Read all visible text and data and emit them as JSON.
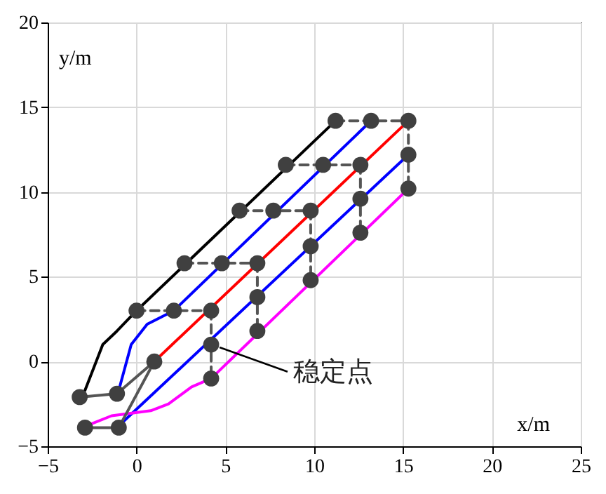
{
  "chart_data": {
    "type": "line",
    "xlabel": "x/m",
    "ylabel": "y/m",
    "xlim": [
      -5,
      25
    ],
    "ylim": [
      -5,
      20
    ],
    "xticks": [
      -5,
      0,
      5,
      10,
      15,
      20,
      25
    ],
    "yticks": [
      -5,
      0,
      5,
      10,
      15,
      20
    ],
    "grid": true,
    "annotations": [
      {
        "text": "稳定点",
        "x": 4.2,
        "y": 1.0
      }
    ],
    "series": [
      {
        "color": "#000000",
        "line_style": "solid",
        "marker": "none",
        "x": [
          -2.9,
          -1.9,
          -1.1,
          0,
          11.2
        ],
        "values": [
          -1.7,
          1.0,
          1.8,
          3.0,
          14.2
        ]
      },
      {
        "color": "#0000ff",
        "line_style": "solid",
        "marker": "none",
        "x": [
          -1.0,
          -0.3,
          0.6,
          2.1,
          13.2
        ],
        "values": [
          -1.7,
          1.0,
          2.2,
          3.0,
          14.2
        ]
      },
      {
        "color": "#ff0000",
        "line_style": "solid",
        "marker": "none",
        "x": [
          1.0,
          15.3
        ],
        "values": [
          0,
          14.2
        ]
      },
      {
        "color": "#0000ff",
        "line_style": "solid",
        "marker": "none",
        "x": [
          -0.7,
          15.3
        ],
        "values": [
          -3.5,
          12.2
        ]
      },
      {
        "color": "#ff00ff",
        "line_style": "solid",
        "marker": "none",
        "x": [
          -2.6,
          -1.4,
          0.8,
          1.8,
          3.1,
          4.2,
          15.3
        ],
        "values": [
          -3.7,
          -3.2,
          -2.9,
          -2.5,
          -1.5,
          -1.0,
          10.2
        ]
      },
      {
        "color": "#555555",
        "line_style": "solid",
        "marker": "none",
        "x": [
          -3.2,
          -1.1,
          1.0
        ],
        "values": [
          -2.1,
          -1.9,
          0
        ]
      },
      {
        "color": "#555555",
        "line_style": "solid",
        "marker": "none",
        "x": [
          -2.9,
          -1.0,
          1.0
        ],
        "values": [
          -3.9,
          -3.9,
          0
        ]
      },
      {
        "color": "#555555",
        "line_style": "dashed",
        "marker": "none",
        "x": [
          11.2,
          13.2,
          15.3
        ],
        "values": [
          14.2,
          14.2,
          14.2
        ]
      },
      {
        "color": "#555555",
        "line_style": "dashed",
        "marker": "none",
        "x": [
          8.4,
          10.5,
          12.6
        ],
        "values": [
          11.6,
          11.6,
          11.6
        ]
      },
      {
        "color": "#555555",
        "line_style": "dashed",
        "marker": "none",
        "x": [
          5.8,
          7.7,
          9.8
        ],
        "values": [
          8.9,
          8.9,
          8.9
        ]
      },
      {
        "color": "#555555",
        "line_style": "dashed",
        "marker": "none",
        "x": [
          2.7,
          4.8,
          6.8
        ],
        "values": [
          5.8,
          5.8,
          5.8
        ]
      },
      {
        "color": "#555555",
        "line_style": "dashed",
        "marker": "none",
        "x": [
          0,
          2.1,
          4.2
        ],
        "values": [
          3.0,
          3.0,
          3.0
        ]
      },
      {
        "color": "#555555",
        "line_style": "dashed",
        "marker": "none",
        "x": [
          15.3,
          15.3,
          15.3
        ],
        "values": [
          14.2,
          12.2,
          10.2
        ]
      },
      {
        "color": "#555555",
        "line_style": "dashed",
        "marker": "none",
        "x": [
          12.6,
          12.6,
          12.6
        ],
        "values": [
          11.6,
          9.6,
          7.6
        ]
      },
      {
        "color": "#555555",
        "line_style": "dashed",
        "marker": "none",
        "x": [
          9.8,
          9.8,
          9.8
        ],
        "values": [
          8.9,
          6.8,
          4.8
        ]
      },
      {
        "color": "#555555",
        "line_style": "dashed",
        "marker": "none",
        "x": [
          6.8,
          6.8,
          6.8
        ],
        "values": [
          5.8,
          3.8,
          1.8
        ]
      },
      {
        "color": "#555555",
        "line_style": "dashed",
        "marker": "none",
        "x": [
          4.2,
          4.2,
          4.2
        ],
        "values": [
          3.0,
          1.0,
          -1.0
        ]
      },
      {
        "type": "scatter",
        "color": "#404040",
        "marker": "circle",
        "x": [
          11.2,
          13.2,
          15.3,
          8.4,
          10.5,
          12.6,
          5.8,
          7.7,
          9.8,
          2.7,
          4.8,
          6.8,
          0,
          2.1,
          4.2,
          15.3,
          15.3,
          12.6,
          12.6,
          9.8,
          9.8,
          6.8,
          6.8,
          4.2,
          4.2,
          -3.2,
          -1.1,
          -2.9,
          -1.0,
          1.0
        ],
        "values": [
          14.2,
          14.2,
          14.2,
          11.6,
          11.6,
          11.6,
          8.9,
          8.9,
          8.9,
          5.8,
          5.8,
          5.8,
          3.0,
          3.0,
          3.0,
          12.2,
          10.2,
          9.6,
          7.6,
          6.8,
          4.8,
          3.8,
          1.8,
          1.0,
          -1.0,
          -2.1,
          -1.9,
          -3.9,
          -3.9,
          0
        ]
      }
    ]
  }
}
